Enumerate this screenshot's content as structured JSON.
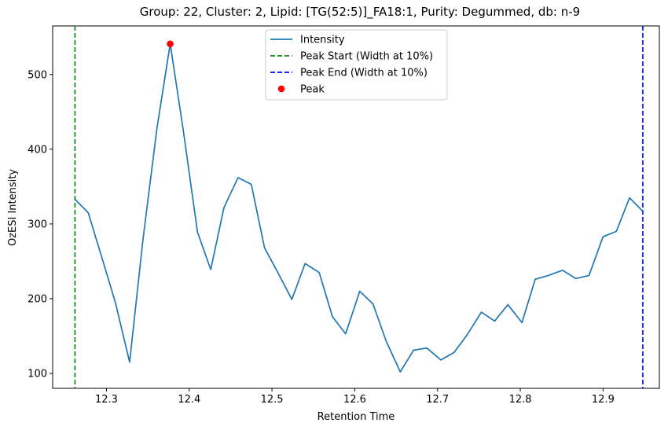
{
  "chart_data": {
    "type": "line",
    "title": "Group: 22, Cluster: 2, Lipid: [TG(52:5)]_FA18:1, Purity: Degummed, db: n-9",
    "xlabel": "Retention Time",
    "ylabel": "OzESI Intensity",
    "xlim": [
      12.235,
      12.968
    ],
    "ylim": [
      80,
      565
    ],
    "xticks": [
      12.3,
      12.4,
      12.5,
      12.6,
      12.7,
      12.8,
      12.9
    ],
    "xtick_labels": [
      "12.3",
      "12.4",
      "12.5",
      "12.6",
      "12.7",
      "12.8",
      "12.9"
    ],
    "yticks": [
      100,
      200,
      300,
      400,
      500
    ],
    "ytick_labels": [
      "100",
      "200",
      "300",
      "400",
      "500"
    ],
    "grid": false,
    "legend_position": "top-center",
    "series": [
      {
        "name": "Intensity",
        "color": "#1f77b4",
        "x": [
          12.262,
          12.278,
          12.295,
          12.311,
          12.328,
          12.344,
          12.361,
          12.377,
          12.393,
          12.41,
          12.426,
          12.442,
          12.459,
          12.475,
          12.491,
          12.508,
          12.524,
          12.54,
          12.557,
          12.573,
          12.589,
          12.606,
          12.622,
          12.638,
          12.655,
          12.671,
          12.687,
          12.704,
          12.72,
          12.736,
          12.753,
          12.769,
          12.785,
          12.802,
          12.818,
          12.834,
          12.851,
          12.867,
          12.883,
          12.9,
          12.916,
          12.932,
          12.948
        ],
        "y": [
          333,
          315,
          253,
          194,
          115,
          278,
          428,
          541,
          424,
          289,
          239,
          322,
          362,
          353,
          268,
          233,
          199,
          247,
          235,
          176,
          153,
          210,
          193,
          143,
          102,
          131,
          134,
          118,
          128,
          152,
          182,
          170,
          192,
          168,
          226,
          231,
          238,
          227,
          231,
          283,
          290,
          335,
          317
        ]
      }
    ],
    "vlines": [
      {
        "name": "Peak Start (Width at 10%)",
        "x": 12.262,
        "color": "#008000",
        "style": "dashed"
      },
      {
        "name": "Peak End (Width at 10%)",
        "x": 12.948,
        "color": "#0000ff",
        "style": "dashed"
      }
    ],
    "markers": [
      {
        "name": "Peak",
        "x": 12.377,
        "y": 541,
        "color": "#ff0000"
      }
    ]
  }
}
